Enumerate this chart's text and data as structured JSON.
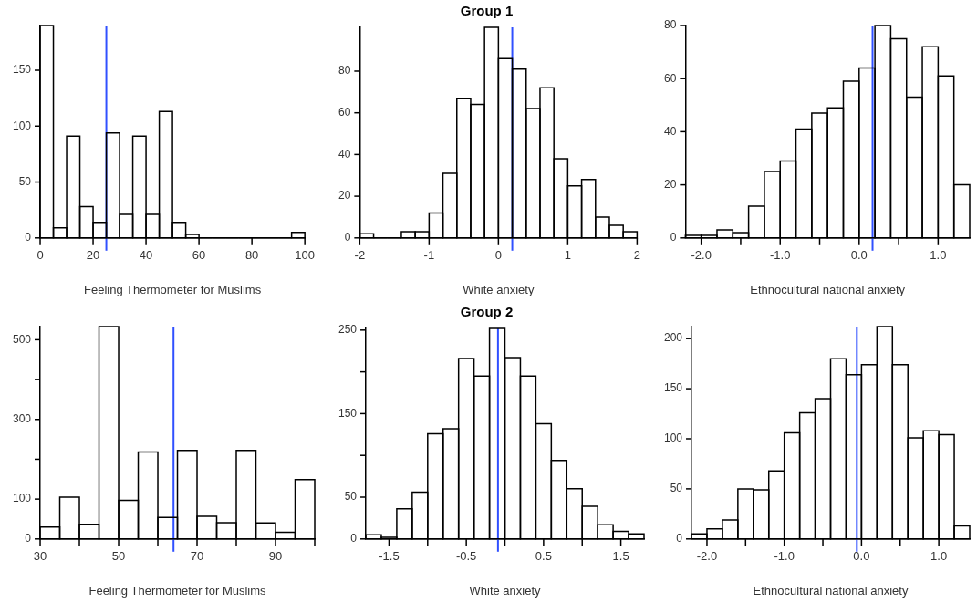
{
  "chart_data": [
    {
      "type": "histogram",
      "xlabel": "Feeling Thermometer for Muslims",
      "bins": [
        0,
        5,
        10,
        15,
        20,
        25,
        30,
        35,
        40,
        45,
        50,
        55,
        60,
        65,
        70,
        75,
        80,
        85,
        90,
        95,
        100
      ],
      "values": [
        190,
        9,
        91,
        28,
        14,
        94,
        21,
        91,
        21,
        113,
        14,
        3,
        0,
        0,
        0,
        0,
        0,
        0,
        0,
        5
      ],
      "color": "#000000",
      "xlim": [
        0,
        100
      ],
      "xticks": [
        0,
        20,
        40,
        60,
        80,
        100
      ],
      "ylim": [
        0,
        190
      ],
      "yticks": [
        0,
        50,
        100,
        150
      ],
      "ref_lines": [
        {
          "axis": "x",
          "value": 25,
          "color": "#3050ff"
        }
      ]
    },
    {
      "type": "histogram",
      "title": "Group 1",
      "xlabel": "White anxiety",
      "bins": [
        -2,
        -1.8,
        -1.6,
        -1.4,
        -1.2,
        -1,
        -0.8,
        -0.6,
        -0.4,
        -0.2,
        0,
        0.2,
        0.4,
        0.6,
        0.8,
        1,
        1.2,
        1.4,
        1.6,
        1.8,
        2
      ],
      "values": [
        2,
        0,
        0,
        3,
        3,
        12,
        31,
        67,
        64,
        101,
        86,
        81,
        62,
        72,
        38,
        25,
        28,
        10,
        6,
        3
      ],
      "color": "#000000",
      "xlim": [
        -2,
        2
      ],
      "xticks": [
        -2,
        -1,
        0,
        1,
        2
      ],
      "ylim": [
        0,
        101
      ],
      "yticks": [
        0,
        20,
        40,
        60,
        80
      ],
      "ref_lines": [
        {
          "axis": "x",
          "value": 0.2,
          "color": "#3050ff"
        }
      ]
    },
    {
      "type": "histogram",
      "xlabel": "Ethnocultural national anxiety",
      "bins": [
        -2.2,
        -2,
        -1.8,
        -1.6,
        -1.4,
        -1.2,
        -1,
        -0.8,
        -0.6,
        -0.4,
        -0.2,
        0,
        0.2,
        0.4,
        0.6,
        0.8,
        1,
        1.2,
        1.4
      ],
      "values": [
        1,
        1,
        3,
        2,
        12,
        25,
        29,
        41,
        47,
        49,
        59,
        64,
        80,
        75,
        53,
        72,
        61,
        20
      ],
      "color": "#000000",
      "xlim": [
        -2.2,
        1.4
      ],
      "xticks": [
        {
          "value": -2,
          "label": "-2.0"
        },
        {
          "value": -1.5,
          "label": null
        },
        {
          "value": -1,
          "label": "-1.0"
        },
        {
          "value": -0.5,
          "label": null
        },
        {
          "value": 0,
          "label": "0.0"
        },
        {
          "value": 0.5,
          "label": null
        },
        {
          "value": 1,
          "label": "1.0"
        }
      ],
      "ylim": [
        0,
        80
      ],
      "yticks": [
        0,
        20,
        40,
        60,
        80
      ],
      "ref_lines": [
        {
          "axis": "x",
          "value": 0.17,
          "color": "#3050ff"
        }
      ]
    },
    {
      "type": "histogram",
      "xlabel": "Feeling Thermometer for Muslims",
      "bins": [
        30,
        35,
        40,
        45,
        50,
        55,
        60,
        65,
        70,
        75,
        80,
        85,
        90,
        95,
        100
      ],
      "values": [
        30,
        105,
        37,
        533,
        97,
        218,
        54,
        222,
        57,
        41,
        222,
        40,
        17,
        149
      ],
      "color": "#000000",
      "xlim": [
        30,
        100
      ],
      "xticks": [
        30,
        {
          "value": 40,
          "label": null
        },
        50,
        {
          "value": 60,
          "label": null
        },
        70,
        {
          "value": 80,
          "label": null
        },
        90,
        {
          "value": 100,
          "label": null
        }
      ],
      "ylim": [
        0,
        533
      ],
      "yticks": [
        0,
        {
          "value": 100,
          "label": "100"
        },
        {
          "value": 200,
          "label": null
        },
        300,
        {
          "value": 400,
          "label": null
        },
        500
      ],
      "ref_lines": [
        {
          "axis": "x",
          "value": 64,
          "color": "#3050ff"
        }
      ]
    },
    {
      "type": "histogram",
      "title": "Group 2",
      "xlabel": "White anxiety",
      "bins": [
        -1.8,
        -1.6,
        -1.4,
        -1.2,
        -1,
        -0.8,
        -0.6,
        -0.4,
        -0.2,
        0,
        0.2,
        0.4,
        0.6,
        0.8,
        1,
        1.2,
        1.4,
        1.6,
        1.8
      ],
      "values": [
        5,
        2,
        36,
        56,
        126,
        132,
        216,
        195,
        252,
        217,
        195,
        138,
        94,
        60,
        39,
        17,
        9,
        6
      ],
      "color": "#000000",
      "xlim": [
        -1.8,
        1.8
      ],
      "xticks": [
        -1.5,
        {
          "value": -1,
          "label": null
        },
        -0.5,
        {
          "value": 0,
          "label": null
        },
        0.5,
        {
          "value": 1,
          "label": null
        },
        1.5
      ],
      "ylim": [
        0,
        252
      ],
      "yticks": [
        0,
        50,
        {
          "value": 100,
          "label": null
        },
        150,
        {
          "value": 200,
          "label": null
        },
        250
      ],
      "ref_lines": [
        {
          "axis": "x",
          "value": -0.09,
          "color": "#3050ff"
        }
      ]
    },
    {
      "type": "histogram",
      "xlabel": "Ethnocultural national anxiety",
      "bins": [
        -2.2,
        -2,
        -1.8,
        -1.6,
        -1.4,
        -1.2,
        -1,
        -0.8,
        -0.6,
        -0.4,
        -0.2,
        0,
        0.2,
        0.4,
        0.6,
        0.8,
        1,
        1.2,
        1.4
      ],
      "values": [
        5,
        10,
        19,
        50,
        49,
        68,
        106,
        126,
        140,
        180,
        164,
        174,
        212,
        174,
        101,
        108,
        104,
        13
      ],
      "color": "#000000",
      "xlim": [
        -2.2,
        1.4
      ],
      "xticks": [
        {
          "value": -2,
          "label": "-2.0"
        },
        {
          "value": -1.5,
          "label": null
        },
        {
          "value": -1,
          "label": "-1.0"
        },
        {
          "value": -0.5,
          "label": null
        },
        {
          "value": 0,
          "label": "0.0"
        },
        {
          "value": 0.5,
          "label": null
        },
        {
          "value": 1,
          "label": "1.0"
        }
      ],
      "ylim": [
        0,
        212
      ],
      "yticks": [
        0,
        50,
        100,
        150,
        200
      ],
      "ref_lines": [
        {
          "axis": "x",
          "value": -0.06,
          "color": "#3050ff"
        }
      ]
    }
  ]
}
